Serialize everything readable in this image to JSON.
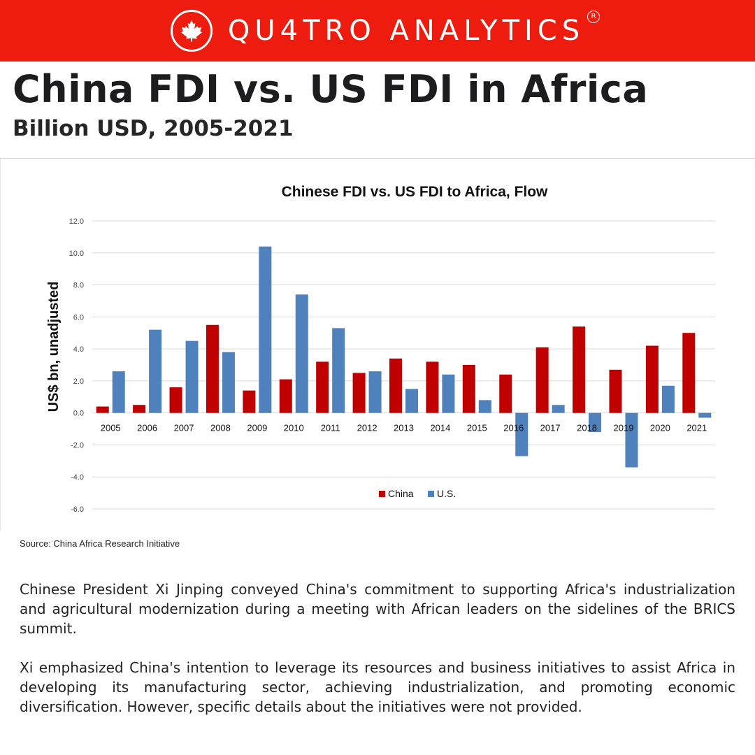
{
  "brand": {
    "name": "QU4TRO ANALYTICS",
    "reg": "R",
    "accent": "#ee1c0e"
  },
  "headline": "China FDI vs. US FDI in Africa",
  "subhead": "Billion USD, 2005-2021",
  "chart_data": {
    "type": "bar",
    "title": "Chinese FDI vs. US FDI to Africa, Flow",
    "xlabel": "",
    "ylabel": "US$ bn, unadjusted",
    "ylim": [
      -6.0,
      12.0
    ],
    "yticks": [
      "12.0",
      "10.0",
      "8.0",
      "6.0",
      "4.0",
      "2.0",
      "0.0",
      "-2.0",
      "-4.0",
      "-6.0"
    ],
    "ytick_values": [
      12,
      10,
      8,
      6,
      4,
      2,
      0,
      -2,
      -4,
      -6
    ],
    "grid": true,
    "legend": "bottom",
    "categories": [
      "2005",
      "2006",
      "2007",
      "2008",
      "2009",
      "2010",
      "2011",
      "2012",
      "2013",
      "2014",
      "2015",
      "2016",
      "2017",
      "2018",
      "2019",
      "2020",
      "2021"
    ],
    "series": [
      {
        "name": "China",
        "color": "#c00000",
        "values": [
          0.4,
          0.5,
          1.6,
          5.5,
          1.4,
          2.1,
          3.2,
          2.5,
          3.4,
          3.2,
          3.0,
          2.4,
          4.1,
          5.4,
          2.7,
          4.2,
          5.0
        ]
      },
      {
        "name": "U.S.",
        "color": "#4f81bd",
        "values": [
          2.6,
          5.2,
          4.5,
          3.8,
          10.4,
          7.4,
          5.3,
          2.6,
          1.5,
          2.4,
          0.8,
          -2.7,
          0.5,
          -1.2,
          -3.4,
          1.7,
          -0.3
        ]
      }
    ]
  },
  "source": "Source: China Africa Research Initiative",
  "paragraphs": [
    "Chinese President Xi Jinping conveyed China's commitment to supporting Africa's industrialization and agricultural modernization during a meeting with African leaders on the sidelines of the BRICS summit.",
    "Xi emphasized China's intention to leverage its resources and business initiatives to assist Africa in developing its manufacturing sector, achieving industrialization, and promoting economic diversification. However, specific details about the initiatives were not provided."
  ]
}
